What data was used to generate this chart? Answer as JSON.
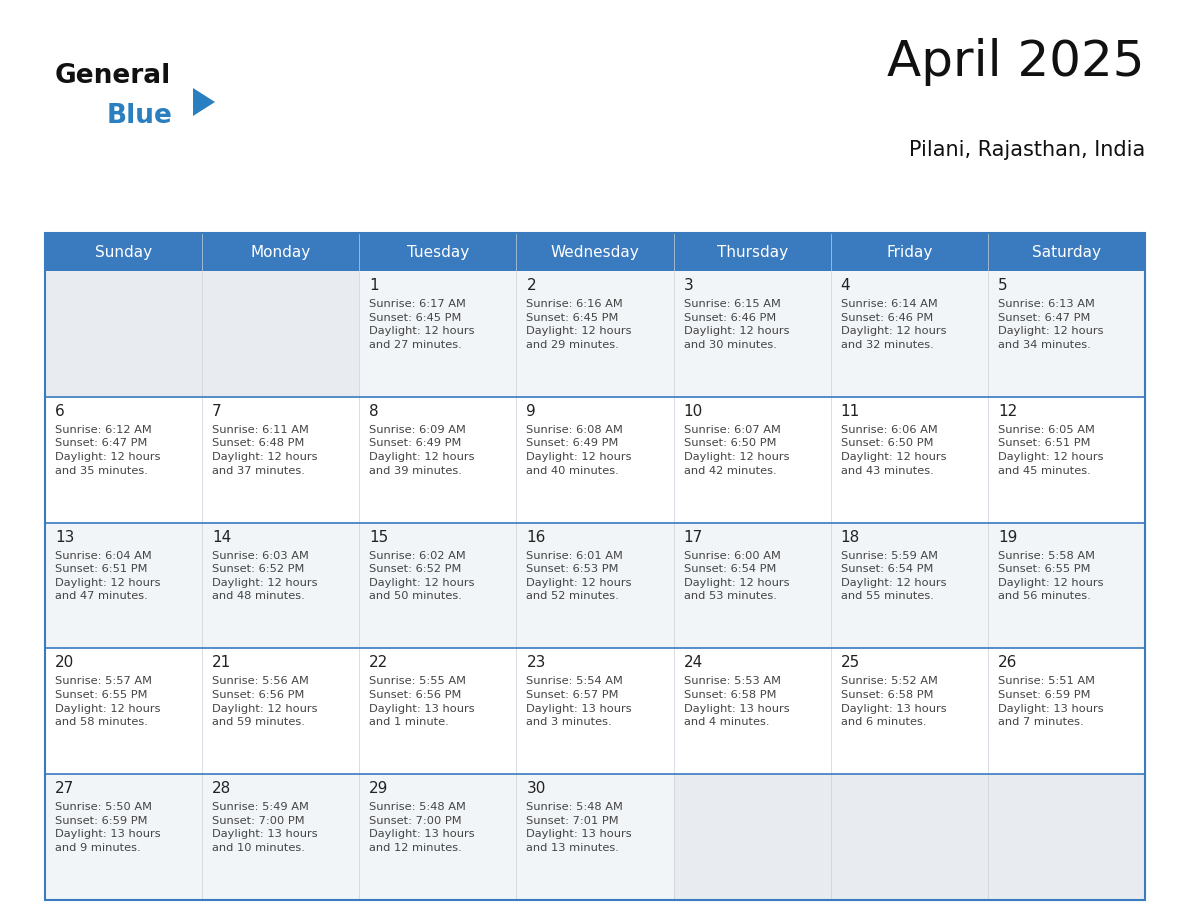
{
  "title": "April 2025",
  "subtitle": "Pilani, Rajasthan, India",
  "header_bg": "#3a7abf",
  "header_text_color": "#ffffff",
  "day_names": [
    "Sunday",
    "Monday",
    "Tuesday",
    "Wednesday",
    "Thursday",
    "Friday",
    "Saturday"
  ],
  "cell_bg_odd": "#f2f5f8",
  "cell_bg_even": "#ffffff",
  "cell_empty_bg": "#e8ecf0",
  "grid_line_color": "#3a7abf",
  "day_num_color": "#222222",
  "cell_text_color": "#444444",
  "logo_general_color": "#111111",
  "logo_blue_color": "#2a7fc0",
  "logo_triangle_color": "#2a7fc0",
  "title_color": "#111111",
  "subtitle_color": "#111111",
  "weeks": [
    [
      {
        "day": null,
        "info": null
      },
      {
        "day": null,
        "info": null
      },
      {
        "day": 1,
        "info": "Sunrise: 6:17 AM\nSunset: 6:45 PM\nDaylight: 12 hours\nand 27 minutes."
      },
      {
        "day": 2,
        "info": "Sunrise: 6:16 AM\nSunset: 6:45 PM\nDaylight: 12 hours\nand 29 minutes."
      },
      {
        "day": 3,
        "info": "Sunrise: 6:15 AM\nSunset: 6:46 PM\nDaylight: 12 hours\nand 30 minutes."
      },
      {
        "day": 4,
        "info": "Sunrise: 6:14 AM\nSunset: 6:46 PM\nDaylight: 12 hours\nand 32 minutes."
      },
      {
        "day": 5,
        "info": "Sunrise: 6:13 AM\nSunset: 6:47 PM\nDaylight: 12 hours\nand 34 minutes."
      }
    ],
    [
      {
        "day": 6,
        "info": "Sunrise: 6:12 AM\nSunset: 6:47 PM\nDaylight: 12 hours\nand 35 minutes."
      },
      {
        "day": 7,
        "info": "Sunrise: 6:11 AM\nSunset: 6:48 PM\nDaylight: 12 hours\nand 37 minutes."
      },
      {
        "day": 8,
        "info": "Sunrise: 6:09 AM\nSunset: 6:49 PM\nDaylight: 12 hours\nand 39 minutes."
      },
      {
        "day": 9,
        "info": "Sunrise: 6:08 AM\nSunset: 6:49 PM\nDaylight: 12 hours\nand 40 minutes."
      },
      {
        "day": 10,
        "info": "Sunrise: 6:07 AM\nSunset: 6:50 PM\nDaylight: 12 hours\nand 42 minutes."
      },
      {
        "day": 11,
        "info": "Sunrise: 6:06 AM\nSunset: 6:50 PM\nDaylight: 12 hours\nand 43 minutes."
      },
      {
        "day": 12,
        "info": "Sunrise: 6:05 AM\nSunset: 6:51 PM\nDaylight: 12 hours\nand 45 minutes."
      }
    ],
    [
      {
        "day": 13,
        "info": "Sunrise: 6:04 AM\nSunset: 6:51 PM\nDaylight: 12 hours\nand 47 minutes."
      },
      {
        "day": 14,
        "info": "Sunrise: 6:03 AM\nSunset: 6:52 PM\nDaylight: 12 hours\nand 48 minutes."
      },
      {
        "day": 15,
        "info": "Sunrise: 6:02 AM\nSunset: 6:52 PM\nDaylight: 12 hours\nand 50 minutes."
      },
      {
        "day": 16,
        "info": "Sunrise: 6:01 AM\nSunset: 6:53 PM\nDaylight: 12 hours\nand 52 minutes."
      },
      {
        "day": 17,
        "info": "Sunrise: 6:00 AM\nSunset: 6:54 PM\nDaylight: 12 hours\nand 53 minutes."
      },
      {
        "day": 18,
        "info": "Sunrise: 5:59 AM\nSunset: 6:54 PM\nDaylight: 12 hours\nand 55 minutes."
      },
      {
        "day": 19,
        "info": "Sunrise: 5:58 AM\nSunset: 6:55 PM\nDaylight: 12 hours\nand 56 minutes."
      }
    ],
    [
      {
        "day": 20,
        "info": "Sunrise: 5:57 AM\nSunset: 6:55 PM\nDaylight: 12 hours\nand 58 minutes."
      },
      {
        "day": 21,
        "info": "Sunrise: 5:56 AM\nSunset: 6:56 PM\nDaylight: 12 hours\nand 59 minutes."
      },
      {
        "day": 22,
        "info": "Sunrise: 5:55 AM\nSunset: 6:56 PM\nDaylight: 13 hours\nand 1 minute."
      },
      {
        "day": 23,
        "info": "Sunrise: 5:54 AM\nSunset: 6:57 PM\nDaylight: 13 hours\nand 3 minutes."
      },
      {
        "day": 24,
        "info": "Sunrise: 5:53 AM\nSunset: 6:58 PM\nDaylight: 13 hours\nand 4 minutes."
      },
      {
        "day": 25,
        "info": "Sunrise: 5:52 AM\nSunset: 6:58 PM\nDaylight: 13 hours\nand 6 minutes."
      },
      {
        "day": 26,
        "info": "Sunrise: 5:51 AM\nSunset: 6:59 PM\nDaylight: 13 hours\nand 7 minutes."
      }
    ],
    [
      {
        "day": 27,
        "info": "Sunrise: 5:50 AM\nSunset: 6:59 PM\nDaylight: 13 hours\nand 9 minutes."
      },
      {
        "day": 28,
        "info": "Sunrise: 5:49 AM\nSunset: 7:00 PM\nDaylight: 13 hours\nand 10 minutes."
      },
      {
        "day": 29,
        "info": "Sunrise: 5:48 AM\nSunset: 7:00 PM\nDaylight: 13 hours\nand 12 minutes."
      },
      {
        "day": 30,
        "info": "Sunrise: 5:48 AM\nSunset: 7:01 PM\nDaylight: 13 hours\nand 13 minutes."
      },
      {
        "day": null,
        "info": null
      },
      {
        "day": null,
        "info": null
      },
      {
        "day": null,
        "info": null
      }
    ]
  ]
}
